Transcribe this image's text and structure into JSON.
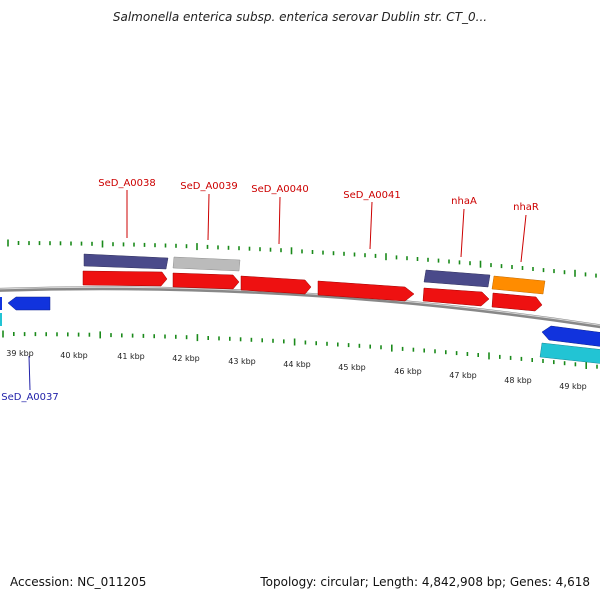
{
  "title": "Salmonella enterica subsp. enterica serovar Dublin str. CT_0...",
  "footer": {
    "accession": "Accession: NC_011205",
    "summary": "Topology: circular; Length: 4,842,908 bp; Genes: 4,618"
  },
  "colors": {
    "backbone": "#888888",
    "tick": "#1a8a1a",
    "label_top": "#cc0000",
    "label_bottom": "#2222aa",
    "cds_red": "#ee1111",
    "cds_purple": "#4a4a8a",
    "cds_grey": "#bbbbbb",
    "cds_orange": "#ff8c00",
    "cds_blue": "#1133dd",
    "cds_cyan": "#22c4d4"
  },
  "scale": {
    "tick_labels": [
      "39 kbp",
      "40 kbp",
      "41 kbp",
      "42 kbp",
      "43 kbp",
      "44 kbp",
      "45 kbp",
      "46 kbp",
      "47 kbp",
      "48 kbp",
      "49 kbp"
    ]
  },
  "genes_top": [
    {
      "name": "SeD_A0038"
    },
    {
      "name": "SeD_A0039"
    },
    {
      "name": "SeD_A0040"
    },
    {
      "name": "SeD_A0041"
    },
    {
      "name": "nhaA"
    },
    {
      "name": "nhaR"
    }
  ],
  "genes_bottom": [
    {
      "name": "SeD_A0037"
    }
  ]
}
